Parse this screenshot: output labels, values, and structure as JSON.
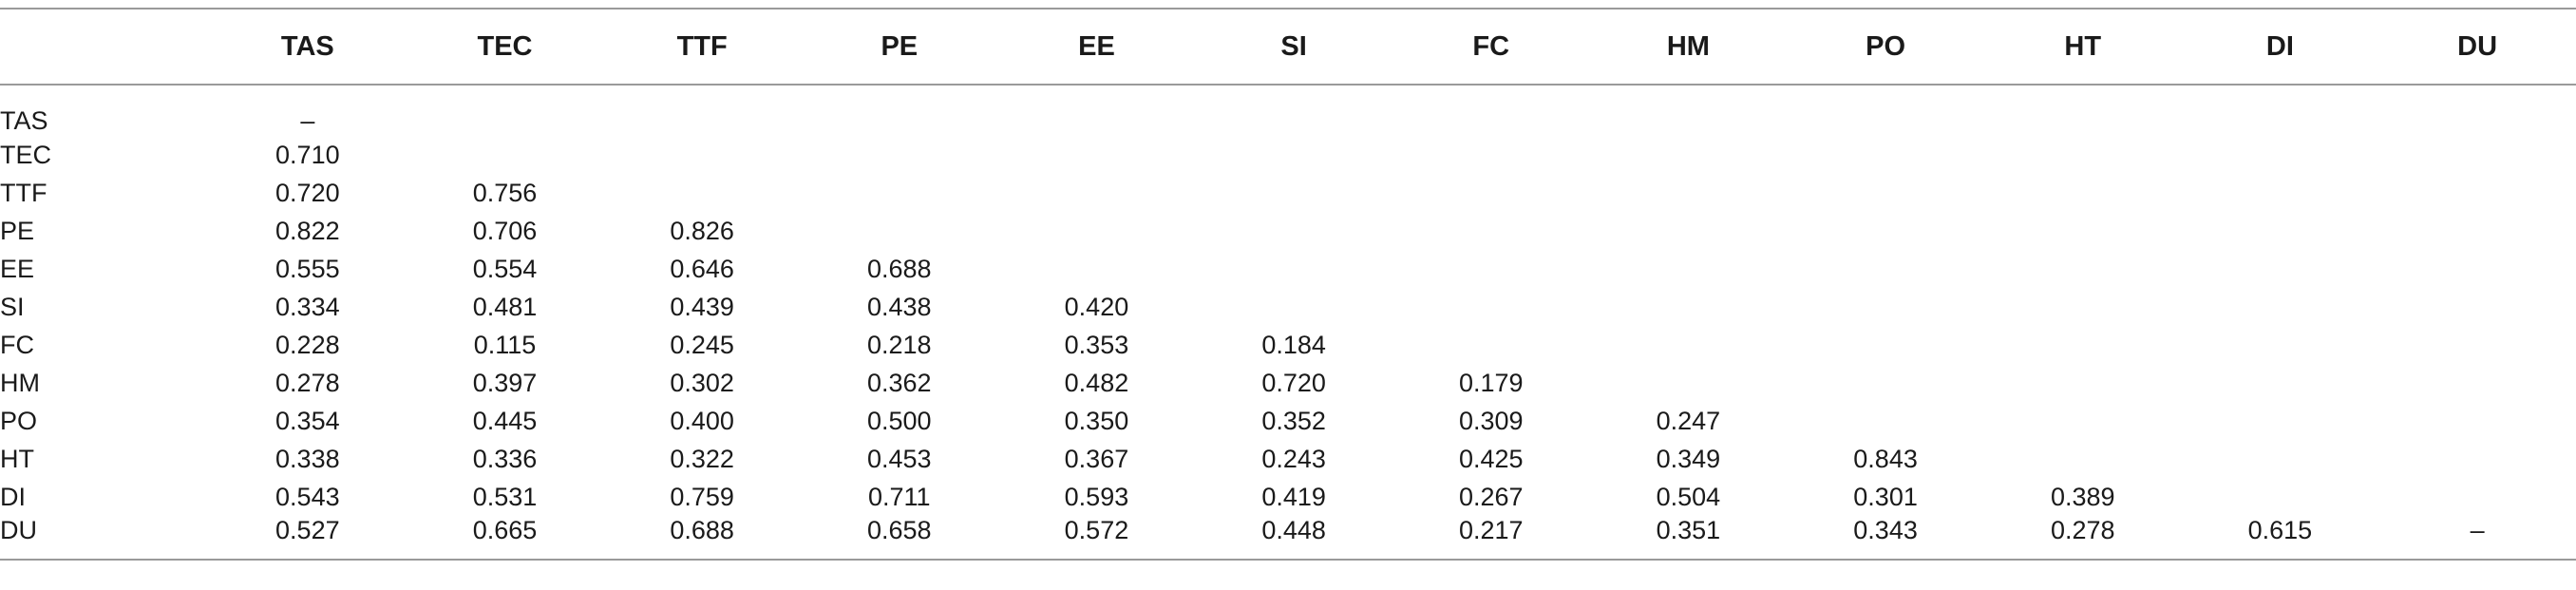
{
  "table": {
    "columns": [
      "",
      "TAS",
      "TEC",
      "TTF",
      "PE",
      "EE",
      "SI",
      "FC",
      "HM",
      "PO",
      "HT",
      "DI",
      "DU"
    ],
    "rows": [
      {
        "label": "TAS",
        "cells": [
          "–",
          "",
          "",
          "",
          "",
          "",
          "",
          "",
          "",
          "",
          "",
          ""
        ]
      },
      {
        "label": "TEC",
        "cells": [
          "0.710",
          "",
          "",
          "",
          "",
          "",
          "",
          "",
          "",
          "",
          "",
          ""
        ]
      },
      {
        "label": "TTF",
        "cells": [
          "0.720",
          "0.756",
          "",
          "",
          "",
          "",
          "",
          "",
          "",
          "",
          "",
          ""
        ]
      },
      {
        "label": "PE",
        "cells": [
          "0.822",
          "0.706",
          "0.826",
          "",
          "",
          "",
          "",
          "",
          "",
          "",
          "",
          ""
        ]
      },
      {
        "label": "EE",
        "cells": [
          "0.555",
          "0.554",
          "0.646",
          "0.688",
          "",
          "",
          "",
          "",
          "",
          "",
          "",
          ""
        ]
      },
      {
        "label": "SI",
        "cells": [
          "0.334",
          "0.481",
          "0.439",
          "0.438",
          "0.420",
          "",
          "",
          "",
          "",
          "",
          "",
          ""
        ]
      },
      {
        "label": "FC",
        "cells": [
          "0.228",
          "0.115",
          "0.245",
          "0.218",
          "0.353",
          "0.184",
          "",
          "",
          "",
          "",
          "",
          ""
        ]
      },
      {
        "label": "HM",
        "cells": [
          "0.278",
          "0.397",
          "0.302",
          "0.362",
          "0.482",
          "0.720",
          "0.179",
          "",
          "",
          "",
          "",
          ""
        ]
      },
      {
        "label": "PO",
        "cells": [
          "0.354",
          "0.445",
          "0.400",
          "0.500",
          "0.350",
          "0.352",
          "0.309",
          "0.247",
          "",
          "",
          "",
          ""
        ]
      },
      {
        "label": "HT",
        "cells": [
          "0.338",
          "0.336",
          "0.322",
          "0.453",
          "0.367",
          "0.243",
          "0.425",
          "0.349",
          "0.843",
          "",
          "",
          ""
        ]
      },
      {
        "label": "DI",
        "cells": [
          "0.543",
          "0.531",
          "0.759",
          "0.711",
          "0.593",
          "0.419",
          "0.267",
          "0.504",
          "0.301",
          "0.389",
          "",
          ""
        ]
      },
      {
        "label": "DU",
        "cells": [
          "0.527",
          "0.665",
          "0.688",
          "0.658",
          "0.572",
          "0.448",
          "0.217",
          "0.351",
          "0.343",
          "0.278",
          "0.615",
          "–"
        ]
      }
    ]
  }
}
